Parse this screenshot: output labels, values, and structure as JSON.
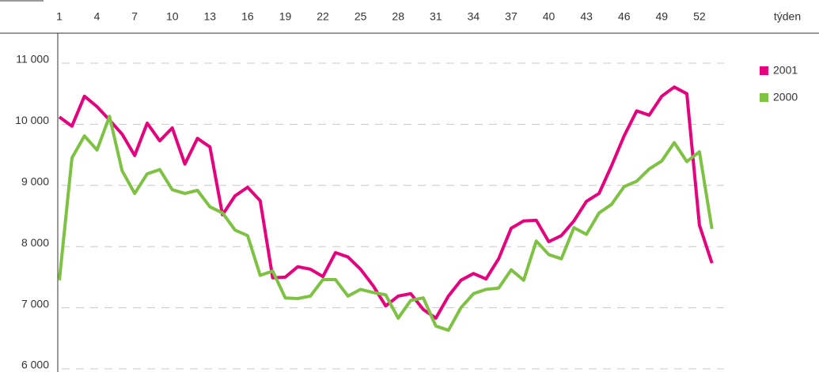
{
  "chart_data": {
    "type": "line",
    "x_label": "týden",
    "x": [
      1,
      2,
      3,
      4,
      5,
      6,
      7,
      8,
      9,
      10,
      11,
      12,
      13,
      14,
      15,
      16,
      17,
      18,
      19,
      20,
      21,
      22,
      23,
      24,
      25,
      26,
      27,
      28,
      29,
      30,
      31,
      32,
      33,
      34,
      35,
      36,
      37,
      38,
      39,
      40,
      41,
      42,
      43,
      44,
      45,
      46,
      47,
      48,
      49,
      50,
      51,
      52,
      53
    ],
    "series": [
      {
        "name": "2001",
        "color": "#e6007e",
        "values": [
          10120,
          9970,
          10460,
          10290,
          10070,
          9840,
          9490,
          10020,
          9730,
          9940,
          9350,
          9770,
          9630,
          8520,
          8830,
          8970,
          8750,
          7490,
          7500,
          7670,
          7630,
          7510,
          7900,
          7830,
          7630,
          7360,
          7030,
          7190,
          7230,
          6970,
          6830,
          7190,
          7450,
          7560,
          7470,
          7800,
          8300,
          8420,
          8430,
          8080,
          8180,
          8420,
          8740,
          8870,
          9320,
          9810,
          10220,
          10150,
          10460,
          10610,
          10500,
          8350,
          7730
        ]
      },
      {
        "name": "2000",
        "color": "#7dc242",
        "values": [
          7450,
          9450,
          9810,
          9580,
          10130,
          9240,
          8870,
          9190,
          9260,
          8930,
          8870,
          8920,
          8650,
          8550,
          8270,
          8180,
          7530,
          7600,
          7160,
          7150,
          7190,
          7460,
          7460,
          7190,
          7300,
          7250,
          7210,
          6830,
          7120,
          7160,
          6700,
          6630,
          7000,
          7230,
          7300,
          7320,
          7620,
          7450,
          8090,
          7870,
          7800,
          8310,
          8200,
          8550,
          8690,
          8980,
          9070,
          9270,
          9400,
          9700,
          9390,
          9550,
          8290
        ]
      }
    ],
    "xlim": [
      1,
      53
    ],
    "xticks": [
      1,
      4,
      7,
      10,
      13,
      16,
      19,
      22,
      25,
      28,
      31,
      34,
      37,
      40,
      43,
      46,
      49,
      52
    ],
    "ylim": [
      6000,
      11000
    ],
    "yticks": [
      {
        "value": 6000,
        "label": "6 000"
      },
      {
        "value": 7000,
        "label": "7 000"
      },
      {
        "value": 8000,
        "label": "8 000"
      },
      {
        "value": 9000,
        "label": "9 000"
      },
      {
        "value": 10000,
        "label": "10 000"
      },
      {
        "value": 11000,
        "label": "11 000"
      }
    ],
    "grid": true
  }
}
